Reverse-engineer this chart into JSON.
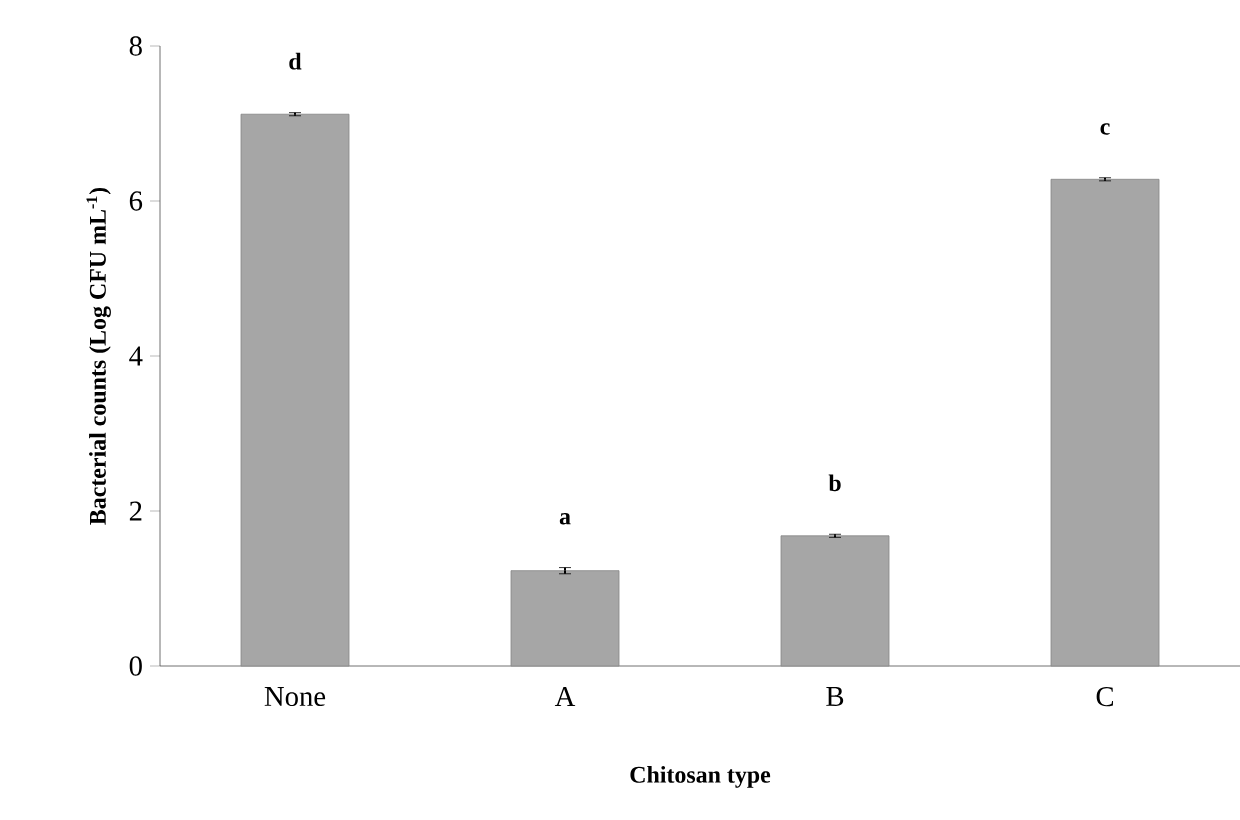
{
  "chart_data": {
    "type": "bar",
    "xlabel": "Chitosan type",
    "ylabel": "Bacterial counts (Log CFU mL$^{-1}$)",
    "categories": [
      "None",
      "A",
      "B",
      "C"
    ],
    "values": [
      7.12,
      1.23,
      1.68,
      6.28
    ],
    "errors": [
      0.02,
      0.04,
      0.02,
      0.02
    ],
    "color": "#a6a6a6",
    "ylim": [
      0,
      8
    ],
    "yticks": [
      0,
      2,
      4,
      6,
      8
    ],
    "annotations": [
      "d",
      "a",
      "b",
      "c"
    ]
  }
}
